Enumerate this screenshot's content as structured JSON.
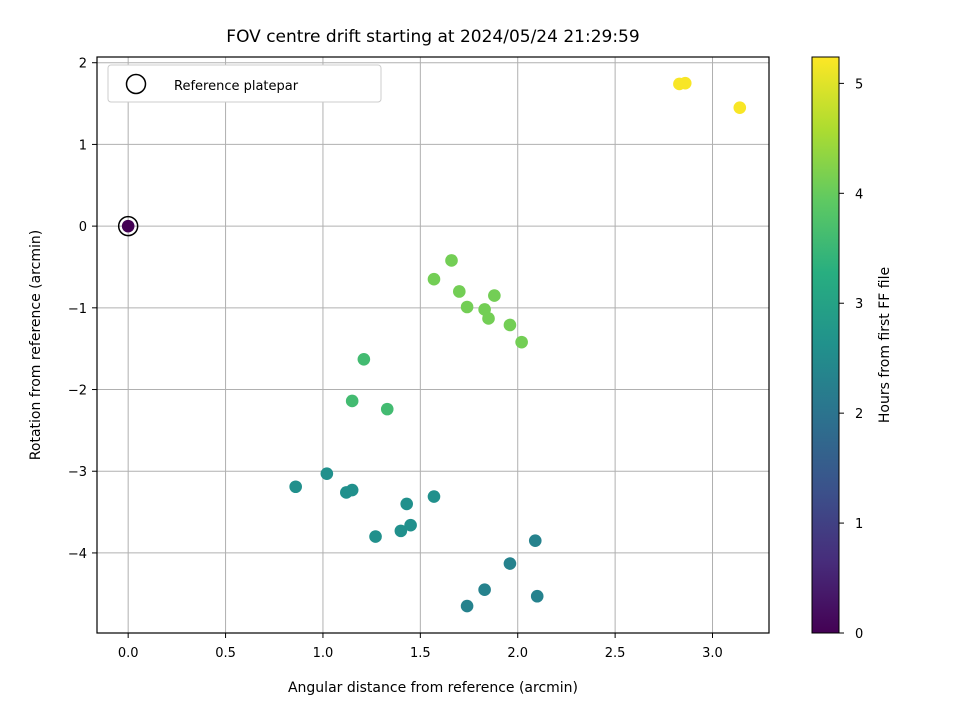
{
  "chart_data": {
    "type": "scatter",
    "title": "FOV centre drift starting at 2024/05/24 21:29:59",
    "xlabel": "Angular distance from reference (arcmin)",
    "ylabel": "Rotation from reference (arcmin)",
    "xlim": [
      -0.16,
      3.29
    ],
    "ylim": [
      -4.98,
      2.07
    ],
    "xticks": [
      0.0,
      0.5,
      1.0,
      1.5,
      2.0,
      2.5,
      3.0
    ],
    "xtick_labels": [
      "0.0",
      "0.5",
      "1.0",
      "1.5",
      "2.0",
      "2.5",
      "3.0"
    ],
    "yticks": [
      -4,
      -3,
      -2,
      -1,
      0,
      1,
      2
    ],
    "ytick_labels": [
      "−4",
      "−3",
      "−2",
      "−1",
      "0",
      "1",
      "2"
    ],
    "grid": true,
    "legend": {
      "position": "top-left",
      "entries": [
        "Reference platepar"
      ]
    },
    "colorbar": {
      "label": "Hours from first FF file",
      "colormap": "viridis",
      "range": [
        0,
        5.24
      ],
      "ticks": [
        0,
        1,
        2,
        3,
        4,
        5
      ],
      "tick_labels": [
        "0",
        "1",
        "2",
        "3",
        "4",
        "5"
      ]
    },
    "reference_point": {
      "x": 0.0,
      "y": 0.0
    },
    "points": [
      {
        "x": 0.0,
        "y": 0.0,
        "hours": 0.0
      },
      {
        "x": 0.86,
        "y": -3.19,
        "hours": 2.6
      },
      {
        "x": 1.02,
        "y": -3.03,
        "hours": 2.6
      },
      {
        "x": 1.12,
        "y": -3.26,
        "hours": 2.6
      },
      {
        "x": 1.15,
        "y": -3.23,
        "hours": 2.6
      },
      {
        "x": 1.27,
        "y": -3.8,
        "hours": 2.6
      },
      {
        "x": 1.4,
        "y": -3.73,
        "hours": 2.6
      },
      {
        "x": 1.43,
        "y": -3.4,
        "hours": 2.6
      },
      {
        "x": 1.45,
        "y": -3.66,
        "hours": 2.6
      },
      {
        "x": 1.57,
        "y": -3.31,
        "hours": 2.6
      },
      {
        "x": 1.74,
        "y": -4.65,
        "hours": 2.3
      },
      {
        "x": 1.83,
        "y": -4.45,
        "hours": 2.3
      },
      {
        "x": 1.96,
        "y": -4.13,
        "hours": 2.3
      },
      {
        "x": 2.09,
        "y": -3.85,
        "hours": 2.3
      },
      {
        "x": 2.1,
        "y": -4.53,
        "hours": 2.3
      },
      {
        "x": 1.15,
        "y": -2.14,
        "hours": 3.6
      },
      {
        "x": 1.21,
        "y": -1.63,
        "hours": 3.6
      },
      {
        "x": 1.33,
        "y": -2.24,
        "hours": 3.6
      },
      {
        "x": 1.57,
        "y": -0.65,
        "hours": 4.1
      },
      {
        "x": 1.66,
        "y": -0.42,
        "hours": 4.1
      },
      {
        "x": 1.7,
        "y": -0.8,
        "hours": 4.1
      },
      {
        "x": 1.74,
        "y": -0.99,
        "hours": 4.1
      },
      {
        "x": 1.83,
        "y": -1.02,
        "hours": 4.1
      },
      {
        "x": 1.85,
        "y": -1.13,
        "hours": 4.1
      },
      {
        "x": 1.88,
        "y": -0.85,
        "hours": 4.1
      },
      {
        "x": 1.96,
        "y": -1.21,
        "hours": 4.1
      },
      {
        "x": 2.02,
        "y": -1.42,
        "hours": 4.1
      },
      {
        "x": 2.83,
        "y": 1.74,
        "hours": 5.2
      },
      {
        "x": 2.86,
        "y": 1.75,
        "hours": 5.2
      },
      {
        "x": 3.14,
        "y": 1.45,
        "hours": 5.2
      }
    ]
  }
}
